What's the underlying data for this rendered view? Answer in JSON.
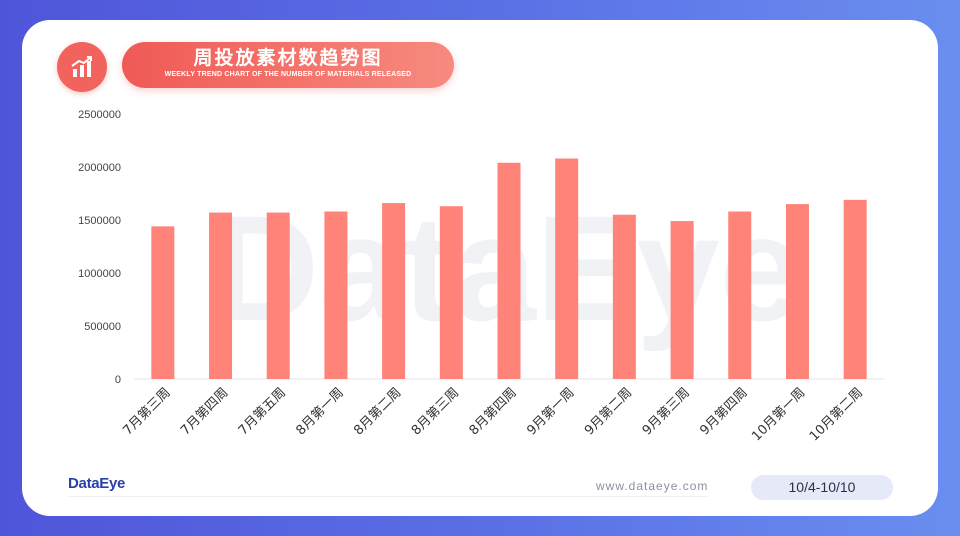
{
  "header": {
    "title": "周投放素材数趋势图",
    "subtitle": "WEEKLY TREND CHART OF THE NUMBER OF MATERIALS RELEASED",
    "icon": "bar-chart-trend-icon"
  },
  "watermark": "DataEye",
  "footer": {
    "brand": "DataEye",
    "website": "www.dataeye.com",
    "date_range": "10/4-10/10"
  },
  "colors": {
    "bar": "#ff8378",
    "accent": "#f2635e",
    "background_start": "#4f55d9",
    "background_end": "#6a8ef0"
  },
  "chart_data": {
    "type": "bar",
    "title": "周投放素材数趋势图",
    "categories": [
      "7月第三周",
      "7月第四周",
      "7月第五周",
      "8月第一周",
      "8月第二周",
      "8月第三周",
      "8月第四周",
      "9月第一周",
      "9月第二周",
      "9月第三周",
      "9月第四周",
      "10月第一周",
      "10月第二周"
    ],
    "values": [
      1440000,
      1570000,
      1570000,
      1580000,
      1660000,
      1630000,
      2040000,
      2080000,
      1550000,
      1490000,
      1580000,
      1650000,
      1690000
    ],
    "yticks": [
      "0",
      "500000",
      "1000000",
      "1500000",
      "2000000",
      "2500000"
    ],
    "ylim": [
      0,
      2500000
    ],
    "grid": false,
    "legend": "none"
  }
}
